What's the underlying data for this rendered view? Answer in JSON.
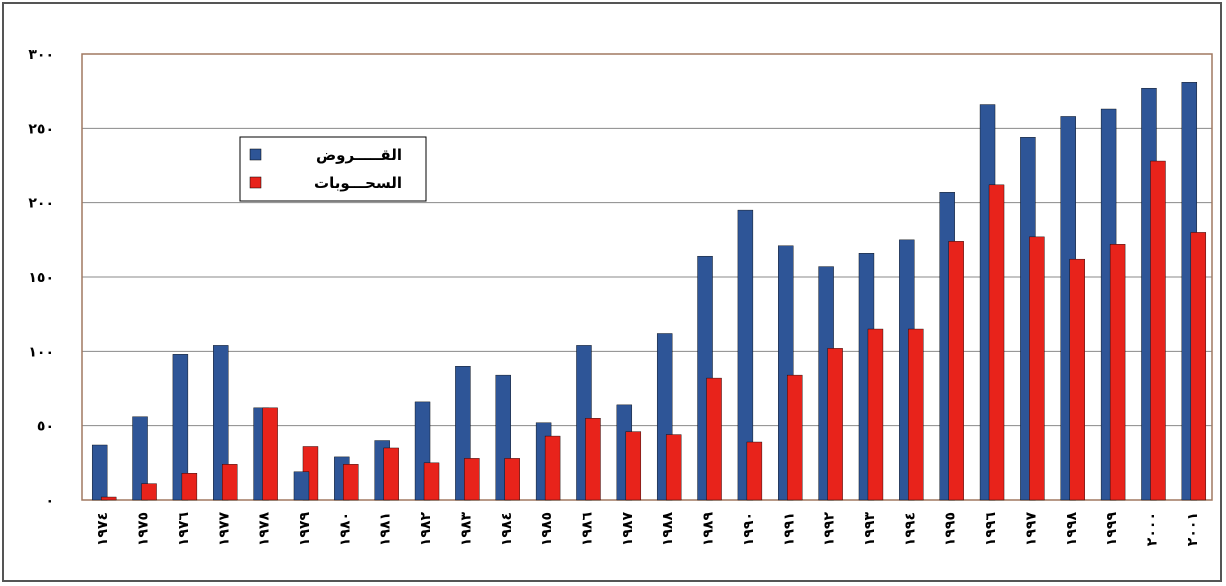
{
  "chart_data": {
    "type": "bar",
    "categories": [
      "١٩٧٤",
      "١٩٧٥",
      "١٩٧٦",
      "١٩٧٧",
      "١٩٧٨",
      "١٩٧٩",
      "١٩٨٠",
      "١٩٨١",
      "١٩٨٢",
      "١٩٨٣",
      "١٩٨٤",
      "١٩٨٥",
      "١٩٨٦",
      "١٩٨٧",
      "١٩٨٨",
      "١٩٨٩",
      "١٩٩٠",
      "١٩٩١",
      "١٩٩٢",
      "١٩٩٣",
      "١٩٩٤",
      "١٩٩٥",
      "١٩٩٦",
      "١٩٩٧",
      "١٩٩٨",
      "١٩٩٩",
      "٢٠٠٠",
      "٢٠٠١"
    ],
    "series": [
      {
        "name": "القـــــروض",
        "color": "#2e5597",
        "values": [
          37,
          56,
          98,
          104,
          62,
          19,
          29,
          40,
          66,
          90,
          84,
          52,
          104,
          64,
          112,
          164,
          195,
          171,
          157,
          166,
          175,
          207,
          266,
          244,
          258,
          263,
          277,
          281
        ]
      },
      {
        "name": "السحـــوبات",
        "color": "#e8231b",
        "values": [
          2,
          11,
          18,
          24,
          62,
          36,
          24,
          35,
          25,
          28,
          28,
          43,
          55,
          46,
          44,
          82,
          39,
          84,
          102,
          115,
          115,
          174,
          212,
          177,
          162,
          172,
          228,
          180
        ]
      }
    ],
    "title": "",
    "xlabel": "",
    "ylabel": "",
    "ylim": [
      0,
      300
    ],
    "yticks": [
      0,
      50,
      100,
      150,
      200,
      250,
      300
    ],
    "ytick_labels": [
      "٠",
      "٥٠",
      "١٠٠",
      "١٥٠",
      "٢٠٠",
      "٢٥٠",
      "٣٠٠"
    ],
    "grid": true,
    "legend_position": "upper-left"
  }
}
